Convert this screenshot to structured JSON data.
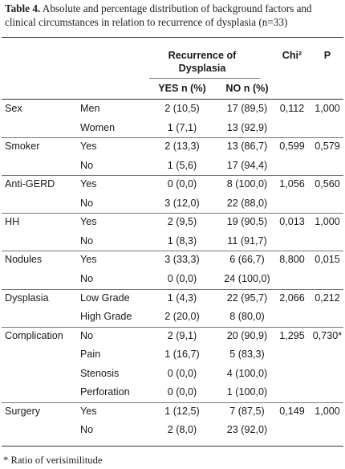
{
  "caption": {
    "label": "Table 4.",
    "text": "Absolute and percentage distribution of background factors and clinical circumstances in relation to recurrence of dysplasia (n=33)"
  },
  "header": {
    "group_line1": "Recurrence of",
    "group_line2": "Dysplasia",
    "yes": "YES n (%)",
    "no": "NO n (%)",
    "chi": "Chi²",
    "p": "P"
  },
  "rows": [
    {
      "var": "Sex",
      "sub": "Men",
      "yes": "2 (10,5)",
      "no": "17 (89,5)",
      "chi": "0,112",
      "p": "1,000"
    },
    {
      "var": "",
      "sub": "Women",
      "yes": "1 (7,1)",
      "no": "13 (92,9)",
      "chi": "",
      "p": ""
    },
    {
      "var": "Smoker",
      "sub": "Yes",
      "yes": "2 (13,3)",
      "no": "13 (86,7)",
      "chi": "0,599",
      "p": "0,579"
    },
    {
      "var": "",
      "sub": "No",
      "yes": "1 (5,6)",
      "no": "17 (94,4)",
      "chi": "",
      "p": ""
    },
    {
      "var": "Anti-GERD",
      "sub": "Yes",
      "yes": "0 (0,0)",
      "no": "8 (100,0)",
      "chi": "1,056",
      "p": "0,560"
    },
    {
      "var": "",
      "sub": "No",
      "yes": "3 (12,0)",
      "no": "22 (88,0)",
      "chi": "",
      "p": ""
    },
    {
      "var": "HH",
      "sub": "Yes",
      "yes": "2 (9,5)",
      "no": "19 (90,5)",
      "chi": "0,013",
      "p": "1,000"
    },
    {
      "var": "",
      "sub": "No",
      "yes": "1 (8,3)",
      "no": "11 (91,7)",
      "chi": "",
      "p": ""
    },
    {
      "var": "Nodules",
      "sub": "Yes",
      "yes": "3 (33,3)",
      "no": "6 (66,7)",
      "chi": "8,800",
      "p": "0,015"
    },
    {
      "var": "",
      "sub": "No",
      "yes": "0 (0,0)",
      "no": "24 (100,0)",
      "chi": "",
      "p": ""
    },
    {
      "var": "Dysplasia",
      "sub": "Low Grade",
      "yes": "1 (4,3)",
      "no": "22 (95,7)",
      "chi": "2,066",
      "p": "0,212"
    },
    {
      "var": "",
      "sub": "High Grade",
      "yes": "2 (20,0)",
      "no": "8 (80,0)",
      "chi": "",
      "p": ""
    },
    {
      "var": "Complication",
      "sub": "No",
      "yes": "2 (9,1)",
      "no": "20 (90,9)",
      "chi": "1,295",
      "p": "0,730*"
    },
    {
      "var": "",
      "sub": "Pain",
      "yes": "1 (16,7)",
      "no": "5 (83,3)",
      "chi": "",
      "p": ""
    },
    {
      "var": "",
      "sub": "Stenosis",
      "yes": "0 (0,0)",
      "no": "4 (100,0)",
      "chi": "",
      "p": ""
    },
    {
      "var": "",
      "sub": "Perforation",
      "yes": "0 (0,0)",
      "no": "1 (100,0)",
      "chi": "",
      "p": ""
    },
    {
      "var": "Surgery",
      "sub": "Yes",
      "yes": "1 (12,5)",
      "no": "7 (87,5)",
      "chi": "0,149",
      "p": "1,000"
    },
    {
      "var": "",
      "sub": "No",
      "yes": "2 (8,0)",
      "no": "23 (92,0)",
      "chi": "",
      "p": ""
    }
  ],
  "footnote": "* Ratio of verisimilitude"
}
